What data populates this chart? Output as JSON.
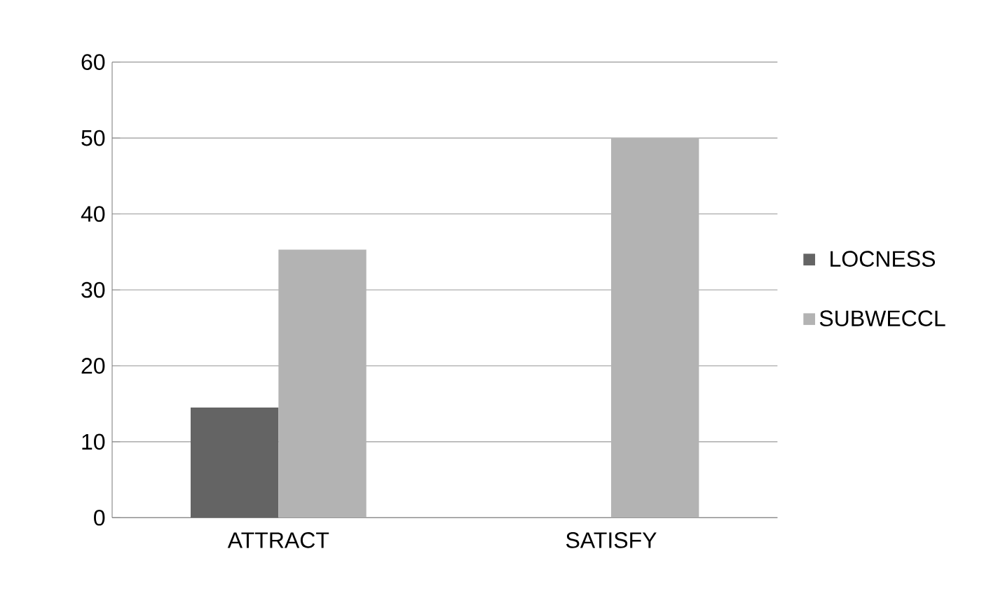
{
  "chart_data": {
    "type": "bar",
    "categories": [
      "ATTRACT",
      "SATISFY"
    ],
    "series": [
      {
        "name": "LOCNESS",
        "color": "#646464",
        "values": [
          14.5,
          0
        ]
      },
      {
        "name": "SUBWECCL",
        "color": "#b3b3b3",
        "values": [
          35.3,
          50
        ]
      }
    ],
    "ylim": [
      0,
      60
    ],
    "yticks": [
      0,
      10,
      20,
      30,
      40,
      50,
      60
    ],
    "grid": "y",
    "legend": "right"
  }
}
